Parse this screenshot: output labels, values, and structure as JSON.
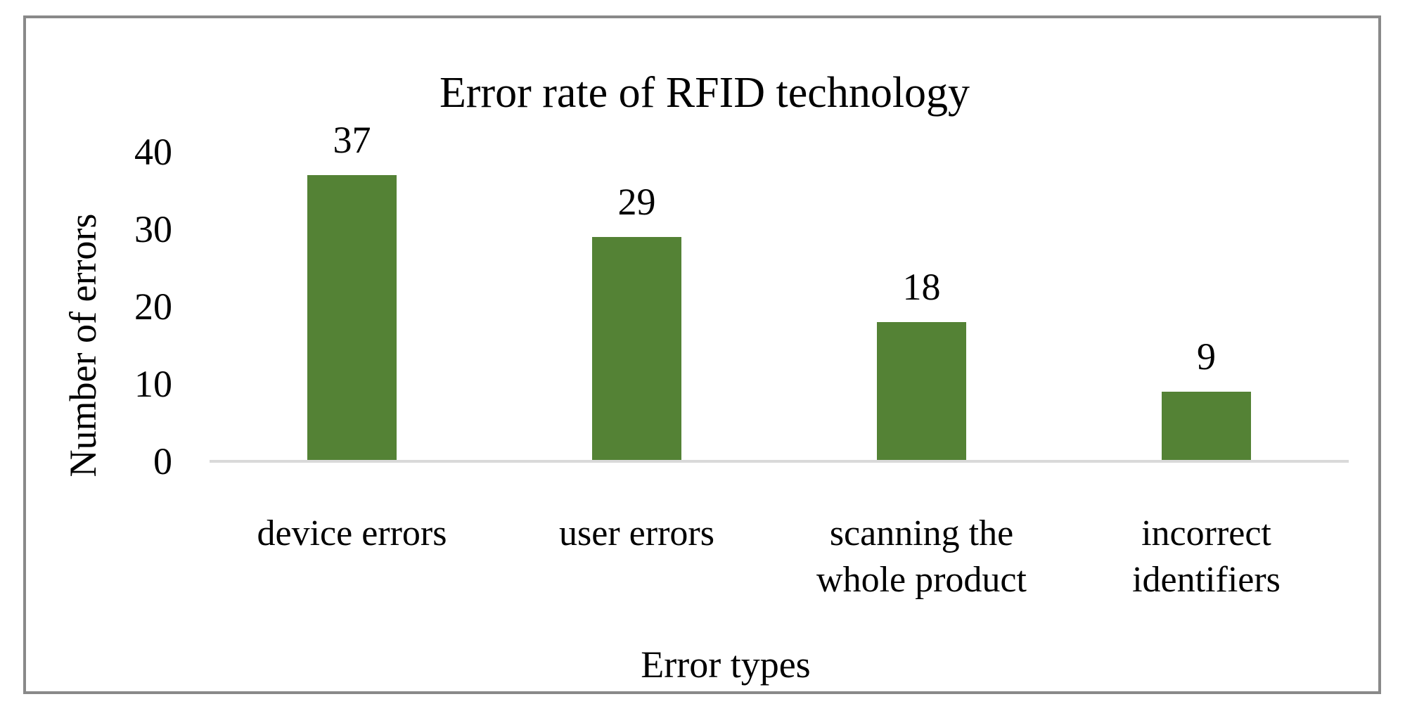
{
  "chart_data": {
    "type": "bar",
    "title": "Error rate of RFID technology",
    "xlabel": "Error types",
    "ylabel": "Number of errors",
    "categories": [
      "device errors",
      "user errors",
      "scanning the whole product",
      "incorrect identifiers"
    ],
    "values": [
      37,
      29,
      18,
      9
    ],
    "data_labels": [
      "37",
      "29",
      "18",
      "9"
    ],
    "yticks": [
      0,
      10,
      20,
      30,
      40
    ],
    "ylim": [
      0,
      40
    ],
    "grid": false,
    "legend": "none",
    "layout_hints": {
      "bar_orientation": "vertical",
      "data_labels_position": "above-bars",
      "y_axis_line_visible": false,
      "x_axis_line_visible": true
    },
    "colors": {
      "bar_fill": "#548235",
      "axis_line": "#d9d9d9",
      "chart_border": "#898989",
      "text": "#000000",
      "background": "#ffffff"
    }
  }
}
